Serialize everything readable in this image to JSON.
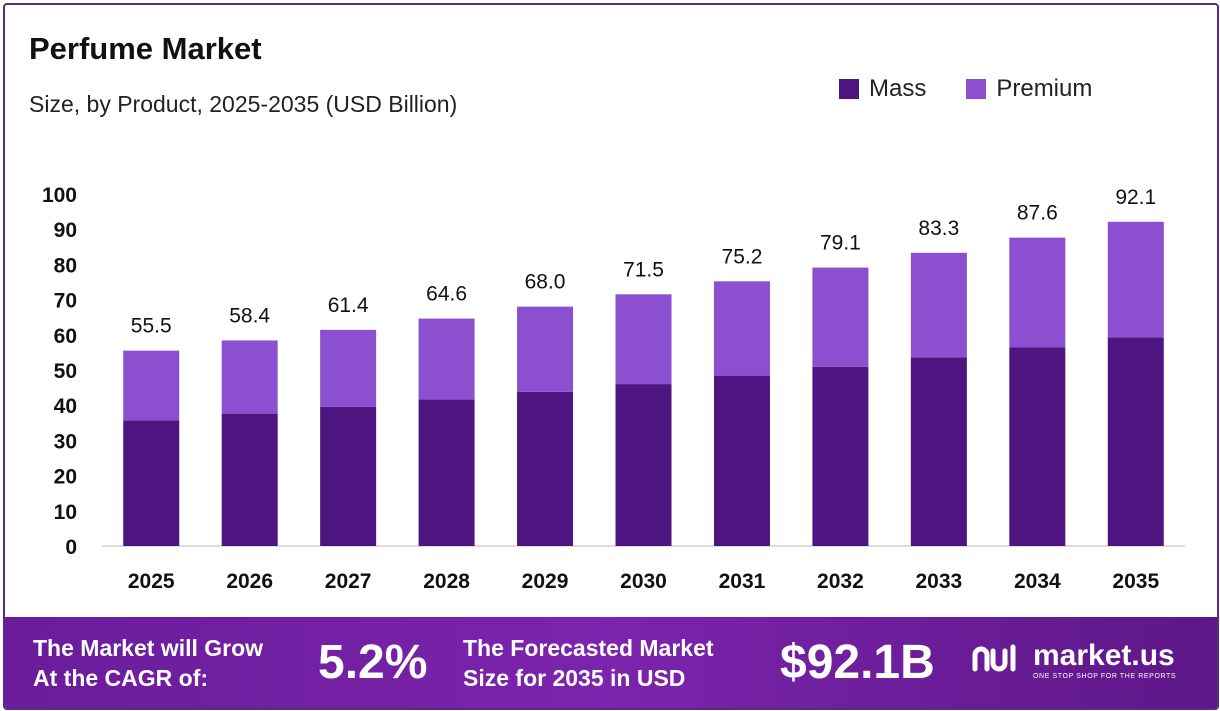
{
  "header": {
    "title": "Perfume Market",
    "subtitle": "Size, by Product, 2025-2035 (USD Billion)"
  },
  "colors": {
    "mass": "#4e1580",
    "premium": "#8b4fd0",
    "footer": "#6a1c9a"
  },
  "chart_data": {
    "type": "bar",
    "stacked": true,
    "categories": [
      "2025",
      "2026",
      "2027",
      "2028",
      "2029",
      "2030",
      "2031",
      "2032",
      "2033",
      "2034",
      "2035"
    ],
    "series": [
      {
        "name": "Mass",
        "values": [
          35.7,
          37.6,
          39.5,
          41.6,
          43.8,
          46.0,
          48.4,
          50.9,
          53.6,
          56.4,
          59.3
        ]
      },
      {
        "name": "Premium",
        "values": [
          19.8,
          20.8,
          21.9,
          23.0,
          24.2,
          25.5,
          26.8,
          28.2,
          29.7,
          31.2,
          32.8
        ]
      }
    ],
    "totals": [
      "55.5",
      "58.4",
      "61.4",
      "64.6",
      "68.0",
      "71.5",
      "75.2",
      "79.1",
      "83.3",
      "87.6",
      "92.1"
    ],
    "ylim": [
      0,
      100
    ],
    "yticks": [
      "0",
      "10",
      "20",
      "30",
      "40",
      "50",
      "60",
      "70",
      "80",
      "90",
      "100"
    ],
    "legend_position": "top-right",
    "grid": false
  },
  "footer": {
    "cagr_label_line1": "The Market will Grow",
    "cagr_label_line2": "At the CAGR of:",
    "cagr_value": "5.2%",
    "forecast_label_line1": "The Forecasted Market",
    "forecast_label_line2": "Size for 2035 in USD",
    "forecast_value": "$92.1B",
    "brand_name": "market.us",
    "brand_tagline": "ONE STOP SHOP FOR THE REPORTS"
  }
}
